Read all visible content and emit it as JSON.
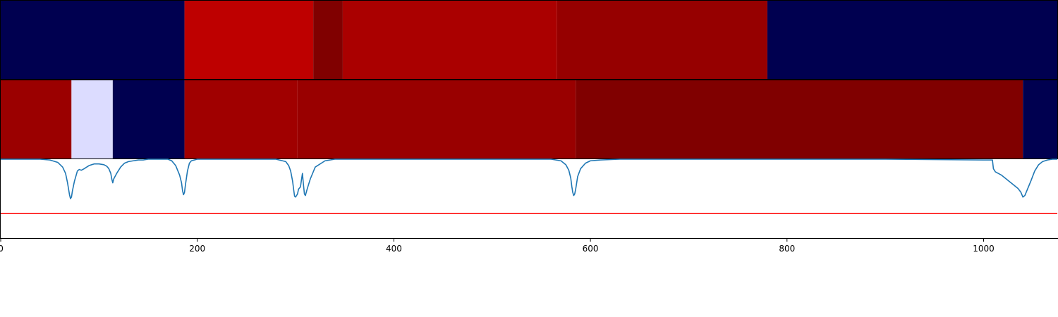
{
  "chart_data": [
    {
      "type": "heatmap",
      "panel": "top-track",
      "segments": [
        {
          "start": 0,
          "end": 187,
          "color": "#000050"
        },
        {
          "start": 187,
          "end": 318,
          "color": "#be0000"
        },
        {
          "start": 318,
          "end": 348,
          "color": "#800000"
        },
        {
          "start": 348,
          "end": 566,
          "color": "#aa0000"
        },
        {
          "start": 566,
          "end": 780,
          "color": "#960000"
        },
        {
          "start": 780,
          "end": 1075,
          "color": "#000050"
        }
      ],
      "xlim": [
        0,
        1075
      ]
    },
    {
      "type": "heatmap",
      "panel": "middle-track",
      "segments": [
        {
          "start": 0,
          "end": 72,
          "color": "#9b0000"
        },
        {
          "start": 72,
          "end": 114,
          "color": "#dcdcff"
        },
        {
          "start": 114,
          "end": 187,
          "color": "#000050"
        },
        {
          "start": 187,
          "end": 302,
          "color": "#a00000"
        },
        {
          "start": 302,
          "end": 585,
          "color": "#990000"
        },
        {
          "start": 585,
          "end": 1040,
          "color": "#800000"
        },
        {
          "start": 1040,
          "end": 1075,
          "color": "#000050"
        }
      ],
      "xlim": [
        0,
        1075
      ]
    },
    {
      "type": "line",
      "panel": "bottom-track",
      "xlim": [
        0,
        1075
      ],
      "ylim": [
        0,
        1
      ],
      "xticks": [
        0,
        200,
        400,
        600,
        800,
        1000
      ],
      "xtick_labels": [
        "0",
        "200",
        "400",
        "600",
        "800",
        "1000"
      ],
      "series": [
        {
          "color": "#1f77b4",
          "x": [
            0,
            40,
            50,
            58,
            63,
            66,
            68,
            70,
            71,
            72,
            73,
            75,
            78,
            80,
            82,
            85,
            90,
            95,
            100,
            105,
            108,
            110,
            112,
            113,
            114,
            115,
            118,
            122,
            126,
            130,
            140,
            145,
            150,
            170,
            174,
            178,
            182,
            184,
            185,
            186,
            187,
            188,
            190,
            192,
            194,
            200,
            210,
            280,
            290,
            293,
            295,
            297,
            298,
            299,
            300,
            302,
            303,
            305,
            306,
            307,
            308,
            309,
            310,
            312,
            315,
            320,
            330,
            340,
            560,
            570,
            575,
            578,
            580,
            581,
            582,
            583,
            584,
            585,
            587,
            590,
            595,
            600,
            610,
            630,
            700,
            800,
            900,
            1000,
            1009,
            1010,
            1012,
            1018,
            1025,
            1030,
            1035,
            1038,
            1040,
            1042,
            1044,
            1048,
            1052,
            1056,
            1060,
            1065,
            1070,
            1075
          ],
          "y": [
            1.0,
            1.0,
            0.99,
            0.96,
            0.9,
            0.82,
            0.7,
            0.55,
            0.5,
            0.52,
            0.6,
            0.72,
            0.85,
            0.87,
            0.86,
            0.88,
            0.92,
            0.94,
            0.94,
            0.93,
            0.91,
            0.88,
            0.82,
            0.75,
            0.7,
            0.75,
            0.82,
            0.9,
            0.95,
            0.97,
            0.99,
            0.99,
            1.0,
            1.0,
            0.98,
            0.92,
            0.8,
            0.7,
            0.6,
            0.55,
            0.58,
            0.68,
            0.85,
            0.95,
            0.98,
            1.0,
            1.0,
            1.0,
            0.97,
            0.92,
            0.85,
            0.72,
            0.62,
            0.53,
            0.52,
            0.56,
            0.62,
            0.65,
            0.74,
            0.82,
            0.68,
            0.56,
            0.54,
            0.63,
            0.75,
            0.9,
            0.98,
            1.0,
            1.0,
            0.98,
            0.93,
            0.86,
            0.76,
            0.66,
            0.58,
            0.54,
            0.56,
            0.62,
            0.78,
            0.88,
            0.95,
            0.98,
            0.99,
            1.0,
            1.0,
            1.0,
            1.0,
            0.99,
            0.99,
            0.88,
            0.84,
            0.8,
            0.73,
            0.68,
            0.63,
            0.58,
            0.52,
            0.54,
            0.6,
            0.72,
            0.85,
            0.93,
            0.97,
            0.99,
            1.0,
            1.0
          ]
        },
        {
          "color": "#ff0000",
          "y_constant": 0.31
        }
      ]
    }
  ]
}
